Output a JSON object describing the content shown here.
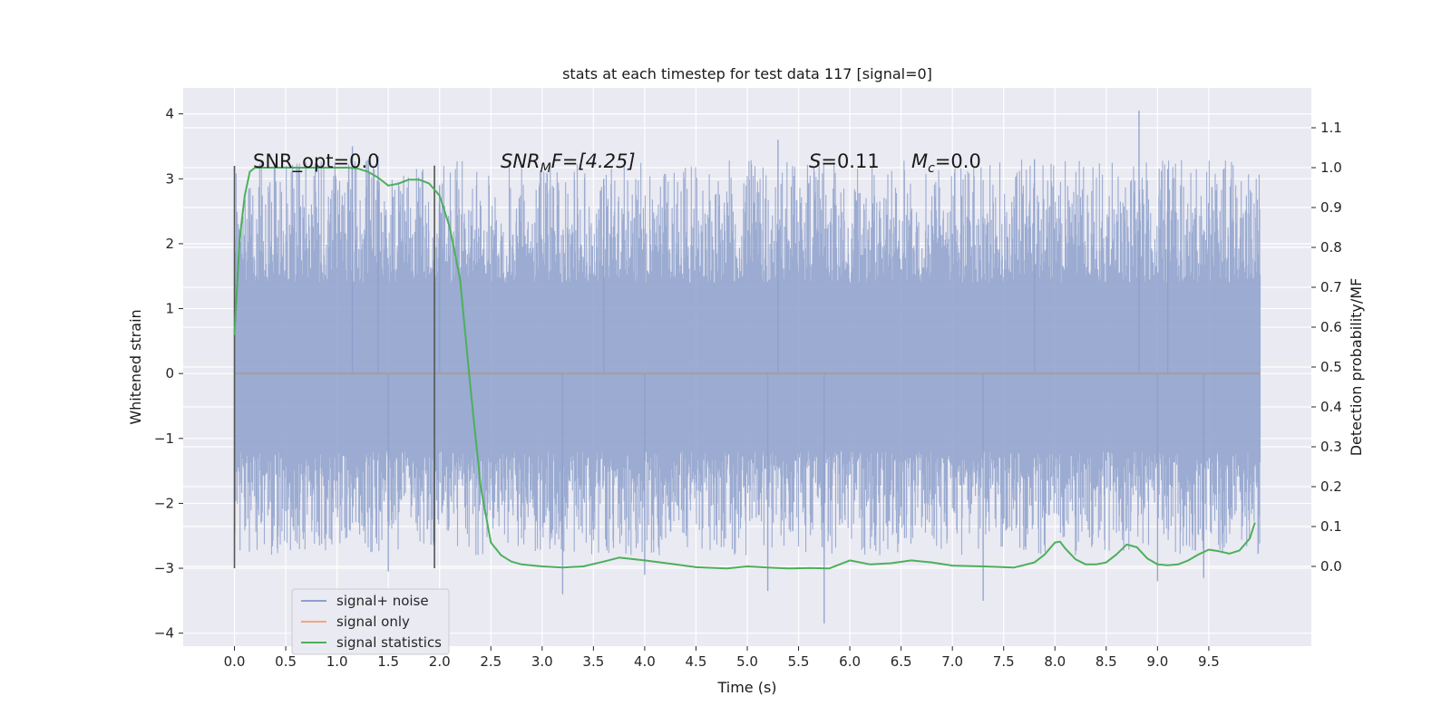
{
  "chart_data": {
    "type": "line",
    "title": "stats at each timestep for test data 117 [signal=0]",
    "xlabel": "Time (s)",
    "ylabel_left": "Whitened strain",
    "ylabel_right": "Detection probability/MF",
    "xlim": [
      -0.5,
      10.5
    ],
    "ylim_left": [
      -4.2,
      4.4
    ],
    "ylim_right": [
      -0.2,
      1.2
    ],
    "x_ticks": [
      0.0,
      0.5,
      1.0,
      1.5,
      2.0,
      2.5,
      3.0,
      3.5,
      4.0,
      4.5,
      5.0,
      5.5,
      6.0,
      6.5,
      7.0,
      7.5,
      8.0,
      8.5,
      9.0,
      9.5
    ],
    "x_tick_labels": [
      "0.0",
      "0.5",
      "1.0",
      "1.5",
      "2.0",
      "2.5",
      "3.0",
      "3.5",
      "4.0",
      "4.5",
      "5.0",
      "5.5",
      "6.0",
      "6.5",
      "7.0",
      "7.5",
      "8.0",
      "8.5",
      "9.0",
      "9.5"
    ],
    "y_left_ticks": [
      -4,
      -3,
      -2,
      -1,
      0,
      1,
      2,
      3,
      4
    ],
    "y_left_tick_labels": [
      "−4",
      "−3",
      "−2",
      "−1",
      "0",
      "1",
      "2",
      "3",
      "4"
    ],
    "y_right_ticks": [
      0.0,
      0.1,
      0.2,
      0.3,
      0.4,
      0.5,
      0.6,
      0.7,
      0.8,
      0.9,
      1.0,
      1.1
    ],
    "y_right_tick_labels": [
      "0.0",
      "0.1",
      "0.2",
      "0.3",
      "0.4",
      "0.5",
      "0.6",
      "0.7",
      "0.8",
      "0.9",
      "1.0",
      "1.1"
    ],
    "grid": true,
    "legend_position": "lower-left",
    "annotations": {
      "snr_opt": "SNR_opt=0.0",
      "snr_mf_sym": "SNR",
      "snr_mf_sub": "M",
      "snr_mf_rest": "F=[4.25]",
      "s_sym": "S",
      "s_rest": "=0.11",
      "mc_sym": "M",
      "mc_sub": "c",
      "mc_rest": "=0.0"
    },
    "window_markers": {
      "x": [
        0.0,
        1.95
      ],
      "y_range": [
        -3.0,
        3.2
      ]
    },
    "series": [
      {
        "name": "signal+ noise",
        "color": "#8da0cb",
        "axis": "left",
        "x_range": [
          0.0,
          10.0
        ],
        "envelope_upper": 1.4,
        "envelope_lower": -1.2,
        "peaks": [
          [
            1.15,
            3.5
          ],
          [
            1.4,
            3.35
          ],
          [
            2.0,
            2.9
          ],
          [
            3.6,
            3.0
          ],
          [
            5.3,
            3.6
          ],
          [
            7.8,
            3.3
          ],
          [
            8.82,
            4.05
          ],
          [
            9.1,
            3.15
          ]
        ],
        "troughs": [
          [
            1.5,
            -3.05
          ],
          [
            3.2,
            -3.4
          ],
          [
            4.0,
            -3.1
          ],
          [
            5.2,
            -3.35
          ],
          [
            5.75,
            -3.85
          ],
          [
            7.3,
            -3.5
          ],
          [
            9.0,
            -3.2
          ],
          [
            9.45,
            -3.15
          ]
        ]
      },
      {
        "name": "signal only",
        "color": "#f4a582",
        "axis": "left",
        "x": [
          0.0,
          10.0
        ],
        "y": [
          0.0,
          0.0
        ]
      },
      {
        "name": "signal statistics",
        "color": "#4daf5c",
        "axis": "right",
        "x": [
          0.0,
          0.05,
          0.1,
          0.15,
          0.2,
          0.3,
          0.5,
          0.8,
          1.0,
          1.1,
          1.2,
          1.3,
          1.4,
          1.5,
          1.6,
          1.7,
          1.8,
          1.9,
          2.0,
          2.1,
          2.2,
          2.3,
          2.4,
          2.5,
          2.6,
          2.7,
          2.8,
          3.0,
          3.2,
          3.4,
          3.6,
          3.75,
          4.0,
          4.3,
          4.5,
          4.8,
          5.0,
          5.2,
          5.4,
          5.6,
          5.8,
          6.0,
          6.2,
          6.4,
          6.6,
          6.8,
          7.0,
          7.3,
          7.6,
          7.8,
          7.9,
          8.0,
          8.05,
          8.1,
          8.2,
          8.3,
          8.4,
          8.5,
          8.6,
          8.7,
          8.8,
          8.9,
          9.0,
          9.1,
          9.2,
          9.3,
          9.4,
          9.5,
          9.6,
          9.7,
          9.8,
          9.9,
          9.95
        ],
        "y": [
          0.58,
          0.82,
          0.93,
          0.99,
          1.0,
          1.0,
          1.0,
          1.0,
          1.0,
          1.0,
          0.998,
          0.99,
          0.975,
          0.955,
          0.96,
          0.97,
          0.97,
          0.96,
          0.93,
          0.85,
          0.72,
          0.45,
          0.2,
          0.06,
          0.028,
          0.012,
          0.005,
          0.0,
          -0.003,
          0.0,
          0.012,
          0.022,
          0.015,
          0.005,
          -0.002,
          -0.005,
          0.0,
          -0.003,
          -0.005,
          -0.004,
          -0.005,
          0.015,
          0.005,
          0.008,
          0.015,
          0.01,
          0.002,
          0.0,
          -0.003,
          0.01,
          0.03,
          0.06,
          0.062,
          0.045,
          0.018,
          0.005,
          0.005,
          0.01,
          0.03,
          0.055,
          0.048,
          0.02,
          0.005,
          0.003,
          0.005,
          0.015,
          0.03,
          0.042,
          0.038,
          0.032,
          0.04,
          0.07,
          0.11
        ]
      }
    ]
  }
}
